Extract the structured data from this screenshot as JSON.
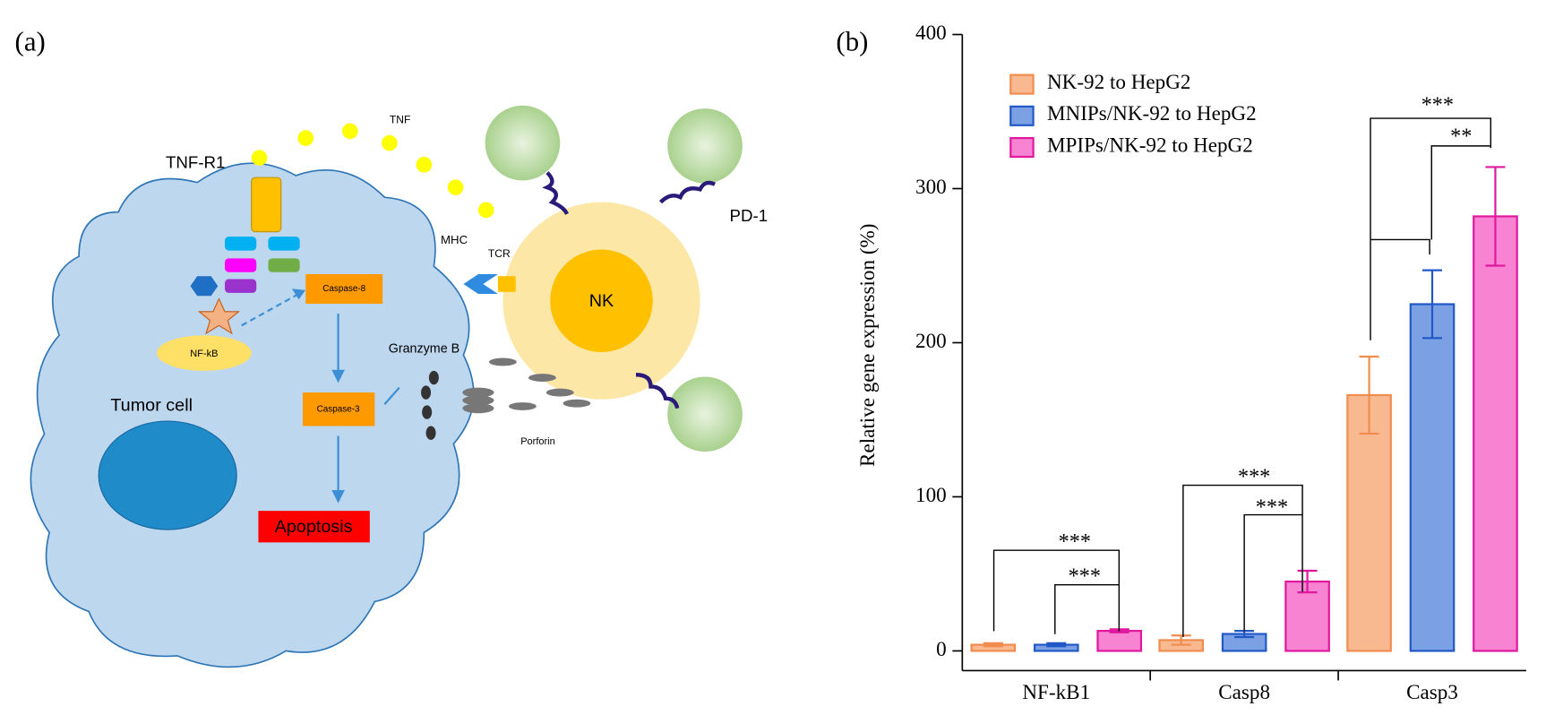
{
  "panel_labels": [
    "(a)",
    "(b)"
  ],
  "diagram": {
    "tnf": "TNF",
    "tnf_r1": "TNF-R1",
    "mhc": "MHC",
    "tcr": "TCR",
    "nk": "NK",
    "pd1": "PD-1",
    "caspase8": "Caspase-8",
    "caspase3": "Caspase-3",
    "apoptosis": "Apoptosis",
    "nfkb": "NF-kB",
    "granzyme": "Granzyme B",
    "tumor": "Tumor cell",
    "porforin": "Porforin"
  },
  "chart_data": {
    "type": "bar",
    "ylabel": "Relative gene expression (%)",
    "categories": [
      "NF-kB1",
      "Casp8",
      "Casp3"
    ],
    "series": [
      {
        "name": "NK-92 to HepG2",
        "color": "#f9b990",
        "edgecolor": "#f08c4e",
        "values": [
          4,
          7,
          166
        ],
        "errors": [
          1,
          3,
          25
        ]
      },
      {
        "name": "MNIPs/NK-92 to HepG2",
        "color": "#7ba1e4",
        "edgecolor": "#2158c8",
        "values": [
          4,
          11,
          225
        ],
        "errors": [
          1,
          2,
          22
        ]
      },
      {
        "name": "MPIPs/NK-92 to HepG2",
        "color": "#f783d2",
        "edgecolor": "#e0189d",
        "values": [
          13,
          45,
          282
        ],
        "errors": [
          1,
          7,
          32
        ]
      }
    ],
    "ylim": [
      0,
      400
    ],
    "yticks": [
      0,
      100,
      200,
      300,
      400
    ],
    "annotations": [
      "***",
      "***",
      "***",
      "***",
      "***",
      "**"
    ]
  }
}
